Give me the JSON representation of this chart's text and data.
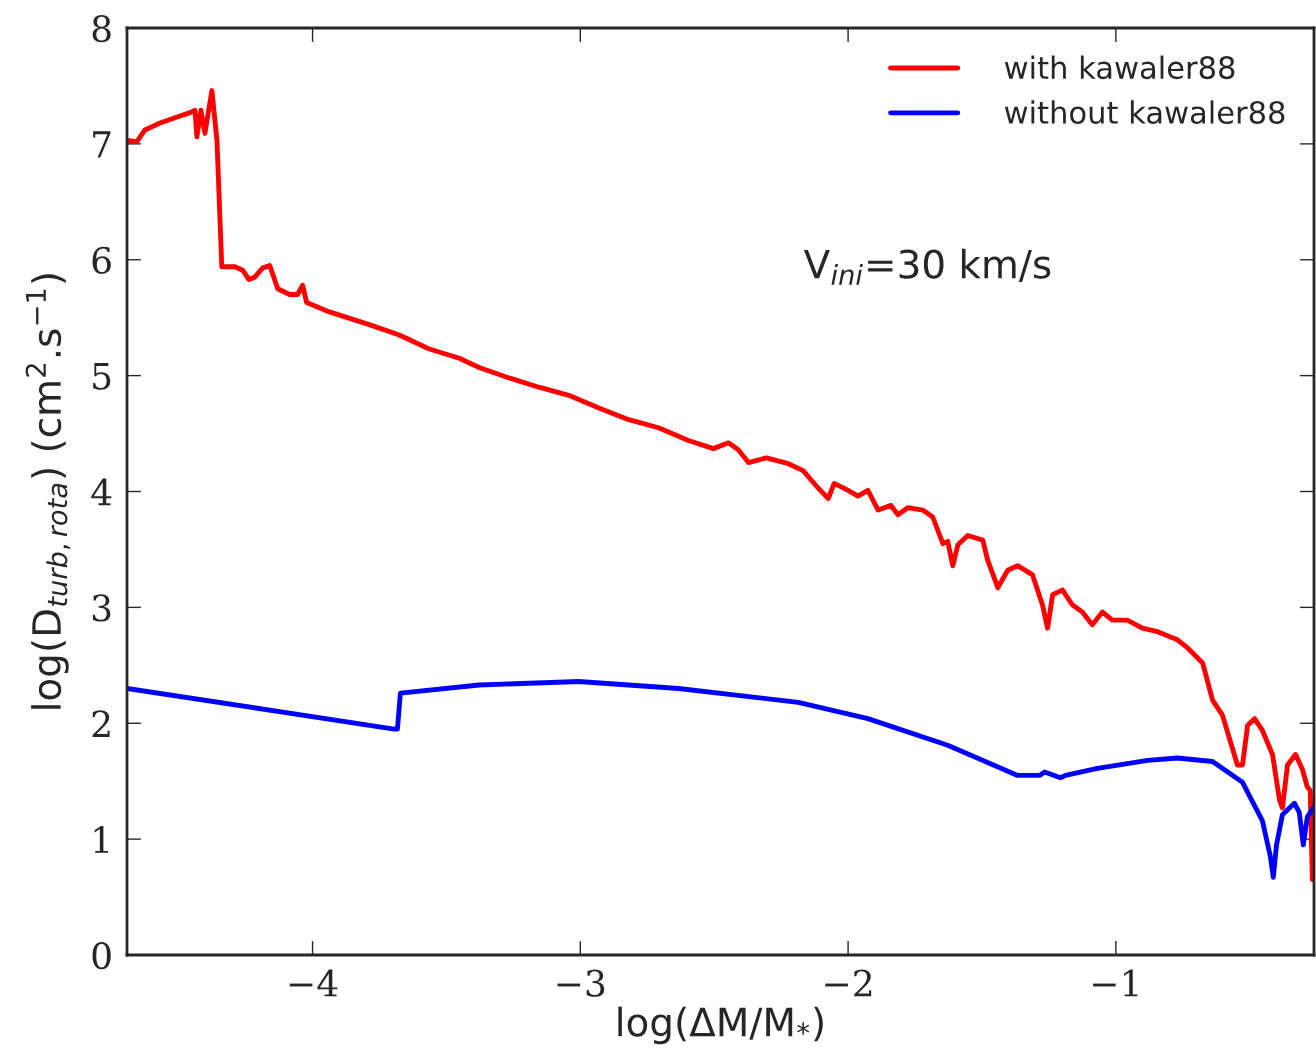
{
  "chart_data": {
    "type": "line",
    "xlabel": "log(ΔM/M$_{*}$)",
    "ylabel": "log(D$_{turb,rota}$) (cm$^{2}$.s$^{−1}$)",
    "annotations": [
      "V$_{ini}$=30 km/s"
    ],
    "xlim": [
      -4.693,
      -0.26
    ],
    "ylim": [
      0,
      8
    ],
    "xticks": [
      {
        "value": -4,
        "label": "−4"
      },
      {
        "value": -3,
        "label": "−3"
      },
      {
        "value": -2,
        "label": "−2"
      },
      {
        "value": -1,
        "label": "−1"
      }
    ],
    "yticks": [
      0,
      1,
      2,
      3,
      4,
      5,
      6,
      7,
      8
    ],
    "grid": false,
    "legend": "top right",
    "line_style": "solid",
    "marker": "none",
    "series": [
      {
        "name": "with kawaler88",
        "color": "#ff0000",
        "x": [
          -4.693,
          -4.656,
          -4.626,
          -4.57,
          -4.495,
          -4.458,
          -4.439,
          -4.432,
          -4.417,
          -4.402,
          -4.376,
          -4.357,
          -4.339,
          -4.29,
          -4.261,
          -4.238,
          -4.216,
          -4.186,
          -4.16,
          -4.13,
          -4.086,
          -4.056,
          -4.037,
          -4.022,
          -3.937,
          -3.788,
          -3.676,
          -3.564,
          -3.452,
          -3.378,
          -3.266,
          -3.155,
          -3.043,
          -2.931,
          -2.819,
          -2.708,
          -2.596,
          -2.503,
          -2.447,
          -2.41,
          -2.372,
          -2.305,
          -2.223,
          -2.168,
          -2.112,
          -2.074,
          -2.052,
          -2.0,
          -1.963,
          -1.926,
          -1.888,
          -1.84,
          -1.814,
          -1.777,
          -1.721,
          -1.684,
          -1.646,
          -1.628,
          -1.609,
          -1.59,
          -1.553,
          -1.497,
          -1.479,
          -1.441,
          -1.404,
          -1.367,
          -1.311,
          -1.274,
          -1.255,
          -1.236,
          -1.199,
          -1.162,
          -1.125,
          -1.088,
          -1.05,
          -1.013,
          -0.957,
          -0.901,
          -0.844,
          -0.77,
          -0.732,
          -0.676,
          -0.639,
          -0.602,
          -0.546,
          -0.527,
          -0.508,
          -0.482,
          -0.453,
          -0.415,
          -0.389,
          -0.378,
          -0.359,
          -0.329,
          -0.303,
          -0.285,
          -0.274,
          -0.266
        ],
        "values": [
          7.03,
          7.02,
          7.12,
          7.18,
          7.24,
          7.27,
          7.29,
          7.06,
          7.29,
          7.09,
          7.46,
          7.03,
          5.94,
          5.94,
          5.91,
          5.83,
          5.85,
          5.93,
          5.95,
          5.75,
          5.7,
          5.7,
          5.78,
          5.63,
          5.55,
          5.44,
          5.35,
          5.23,
          5.15,
          5.07,
          4.98,
          4.9,
          4.83,
          4.72,
          4.62,
          4.55,
          4.44,
          4.37,
          4.42,
          4.36,
          4.25,
          4.29,
          4.24,
          4.18,
          4.03,
          3.94,
          4.07,
          4.01,
          3.96,
          4.01,
          3.84,
          3.88,
          3.8,
          3.86,
          3.84,
          3.78,
          3.55,
          3.57,
          3.36,
          3.54,
          3.62,
          3.58,
          3.41,
          3.17,
          3.32,
          3.36,
          3.28,
          3.02,
          2.82,
          3.11,
          3.15,
          3.02,
          2.96,
          2.85,
          2.96,
          2.89,
          2.89,
          2.82,
          2.79,
          2.72,
          2.65,
          2.52,
          2.2,
          2.07,
          1.64,
          1.64,
          1.98,
          2.04,
          1.94,
          1.73,
          1.34,
          1.27,
          1.64,
          1.73,
          1.6,
          1.45,
          1.42,
          0.65
        ]
      },
      {
        "name": "without kawaler88",
        "color": "#0000ff",
        "x": [
          -4.693,
          -3.695,
          -3.683,
          -3.672,
          -3.378,
          -3.006,
          -2.633,
          -2.186,
          -1.926,
          -1.628,
          -1.367,
          -1.285,
          -1.266,
          -1.207,
          -1.188,
          -1.069,
          -0.881,
          -0.77,
          -0.639,
          -0.527,
          -0.453,
          -0.423,
          -0.412,
          -0.4,
          -0.378,
          -0.333,
          -0.315,
          -0.3,
          -0.285,
          -0.263
        ],
        "values": [
          2.3,
          1.95,
          1.95,
          2.26,
          2.33,
          2.36,
          2.3,
          2.18,
          2.04,
          1.81,
          1.55,
          1.55,
          1.58,
          1.53,
          1.55,
          1.61,
          1.68,
          1.7,
          1.67,
          1.49,
          1.16,
          0.85,
          0.67,
          0.95,
          1.21,
          1.31,
          1.23,
          0.95,
          1.19,
          1.27
        ]
      }
    ]
  }
}
